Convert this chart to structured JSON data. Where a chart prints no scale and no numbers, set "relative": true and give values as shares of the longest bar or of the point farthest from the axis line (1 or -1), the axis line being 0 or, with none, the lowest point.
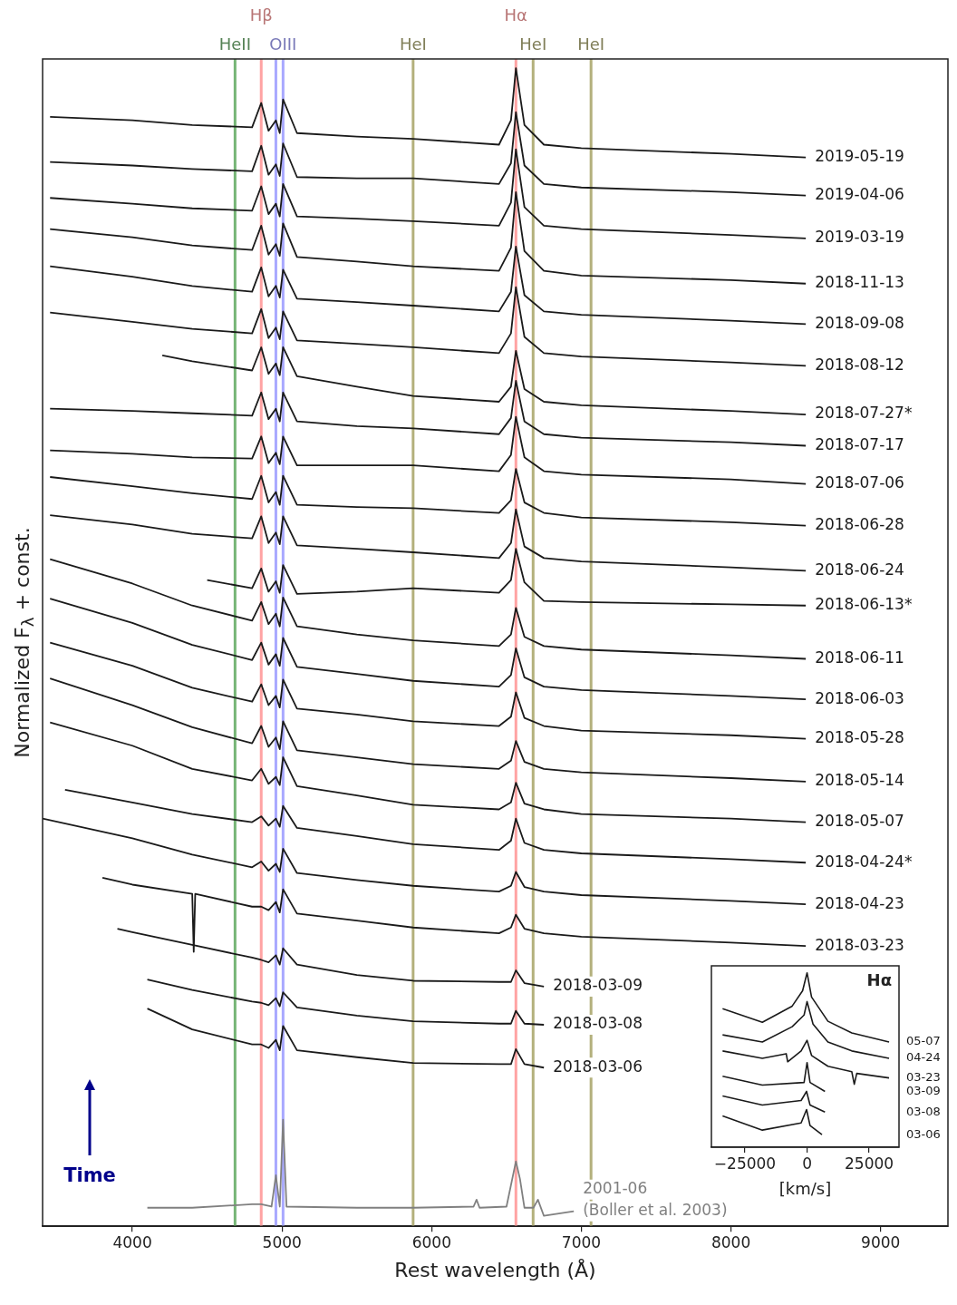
{
  "chart_data": [
    {
      "type": "line",
      "xlabel": "Rest wavelength (Å)",
      "ylabel": "Normalized F$_{λ}$ + const.",
      "relative": true,
      "xlim": [
        3400,
        9450
      ],
      "xticks": [
        4000,
        5000,
        6000,
        7000,
        8000,
        9000
      ],
      "x": [
        3450,
        4000,
        4400,
        4800,
        4861,
        4910,
        4959,
        4985,
        5007,
        5100,
        5500,
        5876,
        6450,
        6530,
        6563,
        6620,
        6750,
        7000,
        8000,
        8500
      ],
      "annotations": [
        "Time",
        {
          "text": "(Boller et al. 2003)",
          "x": 6950,
          "y": 0.013
        }
      ],
      "ref_lines": [
        {
          "axis": "x",
          "value": 4686,
          "label": "HeII",
          "color": "#76b576"
        },
        {
          "axis": "x",
          "value": 4861,
          "label": "Hβ",
          "color": "#ffa3a3"
        },
        {
          "axis": "x",
          "value": 4959,
          "color": "#a8a8ff"
        },
        {
          "axis": "x",
          "value": 5007,
          "label": "OIII",
          "color": "#a8a8ff"
        },
        {
          "axis": "x",
          "value": 5876,
          "label": "HeI",
          "color": "#b3b07c"
        },
        {
          "axis": "x",
          "value": 6678,
          "label": "HeI",
          "color": "#b3b07c"
        },
        {
          "axis": "x",
          "value": 6563,
          "label": "Hα",
          "color": "#ffa3a3"
        },
        {
          "axis": "x",
          "value": 7065,
          "label": "HeI",
          "color": "#b3b07c"
        }
      ],
      "series": [
        {
          "name": "2019-05-19",
          "color": "#1a1a1a",
          "values": [
            0.958,
            0.955,
            0.951,
            0.949,
            0.97,
            0.946,
            0.955,
            0.944,
            0.973,
            0.944,
            0.941,
            0.939,
            0.934,
            0.955,
            1,
            0.951,
            0.934,
            0.931,
            0.926,
            0.923
          ]
        },
        {
          "name": "2019-04-06",
          "color": "#1a1a1a",
          "values": [
            0.919,
            0.916,
            0.913,
            0.911,
            0.933,
            0.908,
            0.917,
            0.907,
            0.935,
            0.906,
            0.905,
            0.905,
            0.9,
            0.918,
            0.962,
            0.916,
            0.9,
            0.897,
            0.893,
            0.89
          ]
        },
        {
          "name": "2019-03-19",
          "color": "#1a1a1a",
          "values": [
            0.888,
            0.883,
            0.879,
            0.877,
            0.898,
            0.874,
            0.883,
            0.872,
            0.9,
            0.872,
            0.87,
            0.868,
            0.864,
            0.884,
            0.93,
            0.88,
            0.864,
            0.861,
            0.856,
            0.853
          ]
        },
        {
          "name": "2018-11-13",
          "color": "#1a1a1a",
          "values": [
            0.861,
            0.854,
            0.847,
            0.843,
            0.864,
            0.839,
            0.848,
            0.838,
            0.866,
            0.837,
            0.833,
            0.829,
            0.825,
            0.845,
            0.893,
            0.842,
            0.825,
            0.821,
            0.817,
            0.814
          ]
        },
        {
          "name": "2018-09-08",
          "color": "#1a1a1a",
          "values": [
            0.829,
            0.82,
            0.812,
            0.807,
            0.828,
            0.803,
            0.812,
            0.802,
            0.826,
            0.801,
            0.798,
            0.795,
            0.79,
            0.807,
            0.846,
            0.804,
            0.79,
            0.787,
            0.782,
            0.779
          ]
        },
        {
          "name": "2018-08-12",
          "color": "#1a1a1a",
          "values": [
            0.789,
            0.781,
            0.775,
            0.771,
            0.792,
            0.767,
            0.776,
            0.766,
            0.79,
            0.765,
            0.762,
            0.759,
            0.754,
            0.771,
            0.811,
            0.768,
            0.754,
            0.751,
            0.746,
            0.743
          ]
        },
        {
          "name": "2018-07-27*",
          "color": "#1a1a1a",
          "x": [
            4200,
            4400,
            4800,
            4861,
            4910,
            4959,
            4985,
            5007,
            5100,
            5500,
            5876,
            6450,
            6530,
            6563,
            6620,
            6750,
            7000,
            8000,
            8500
          ],
          "values": [
            0.752,
            0.747,
            0.739,
            0.759,
            0.736,
            0.745,
            0.735,
            0.759,
            0.734,
            0.725,
            0.717,
            0.712,
            0.725,
            0.756,
            0.723,
            0.712,
            0.709,
            0.704,
            0.701
          ]
        },
        {
          "name": "2018-07-17",
          "color": "#1a1a1a",
          "values": [
            0.706,
            0.704,
            0.702,
            0.7,
            0.72,
            0.697,
            0.706,
            0.695,
            0.72,
            0.695,
            0.691,
            0.689,
            0.684,
            0.698,
            0.73,
            0.695,
            0.684,
            0.681,
            0.677,
            0.674
          ]
        },
        {
          "name": "2018-07-06",
          "color": "#1a1a1a",
          "values": [
            0.67,
            0.667,
            0.664,
            0.663,
            0.682,
            0.659,
            0.668,
            0.658,
            0.682,
            0.657,
            0.657,
            0.657,
            0.652,
            0.666,
            0.699,
            0.664,
            0.652,
            0.649,
            0.645,
            0.641
          ]
        },
        {
          "name": "2018-06-28",
          "color": "#1a1a1a",
          "values": [
            0.647,
            0.639,
            0.633,
            0.628,
            0.648,
            0.625,
            0.634,
            0.623,
            0.648,
            0.623,
            0.621,
            0.62,
            0.616,
            0.627,
            0.654,
            0.625,
            0.616,
            0.612,
            0.608,
            0.605
          ]
        },
        {
          "name": "2018-06-24",
          "color": "#1a1a1a",
          "values": [
            0.614,
            0.606,
            0.598,
            0.594,
            0.613,
            0.59,
            0.599,
            0.589,
            0.613,
            0.588,
            0.585,
            0.582,
            0.577,
            0.59,
            0.619,
            0.587,
            0.577,
            0.574,
            0.569,
            0.566
          ]
        },
        {
          "name": "2018-06-13*",
          "color": "#1a1a1a",
          "x": [
            4500,
            4800,
            4861,
            4910,
            4959,
            4985,
            5007,
            5100,
            5500,
            5876,
            6450,
            6530,
            6563,
            6620,
            6750,
            7000,
            8000,
            8500
          ],
          "values": [
            0.558,
            0.551,
            0.568,
            0.548,
            0.557,
            0.547,
            0.571,
            0.546,
            0.548,
            0.551,
            0.547,
            0.558,
            0.585,
            0.556,
            0.54,
            0.539,
            0.537,
            0.536
          ]
        },
        {
          "name": "2018-06-11",
          "color": "#1a1a1a",
          "values": [
            0.576,
            0.555,
            0.536,
            0.523,
            0.539,
            0.52,
            0.529,
            0.518,
            0.543,
            0.518,
            0.511,
            0.506,
            0.501,
            0.511,
            0.534,
            0.509,
            0.501,
            0.498,
            0.493,
            0.49
          ]
        },
        {
          "name": "2018-06-03",
          "color": "#1a1a1a",
          "values": [
            0.542,
            0.521,
            0.502,
            0.489,
            0.504,
            0.485,
            0.494,
            0.484,
            0.508,
            0.483,
            0.477,
            0.471,
            0.466,
            0.476,
            0.499,
            0.474,
            0.466,
            0.463,
            0.458,
            0.455
          ]
        },
        {
          "name": "2018-05-28",
          "color": "#1a1a1a",
          "values": [
            0.504,
            0.484,
            0.465,
            0.453,
            0.468,
            0.45,
            0.458,
            0.448,
            0.472,
            0.447,
            0.442,
            0.436,
            0.432,
            0.44,
            0.461,
            0.439,
            0.432,
            0.428,
            0.424,
            0.421
          ]
        },
        {
          "name": "2018-05-14",
          "color": "#1a1a1a",
          "values": [
            0.473,
            0.45,
            0.431,
            0.417,
            0.432,
            0.414,
            0.422,
            0.412,
            0.436,
            0.411,
            0.405,
            0.399,
            0.395,
            0.402,
            0.419,
            0.401,
            0.395,
            0.392,
            0.387,
            0.384
          ]
        },
        {
          "name": "2018-05-07",
          "color": "#1a1a1a",
          "values": [
            0.435,
            0.415,
            0.395,
            0.385,
            0.395,
            0.382,
            0.388,
            0.381,
            0.405,
            0.38,
            0.372,
            0.364,
            0.36,
            0.366,
            0.383,
            0.365,
            0.36,
            0.356,
            0.352,
            0.349
          ]
        },
        {
          "name": "2018-04-24*",
          "color": "#1a1a1a",
          "x": [
            3550,
            4000,
            4400,
            4800,
            4861,
            4910,
            4959,
            4985,
            5007,
            5100,
            5500,
            5876,
            6450,
            6530,
            6563,
            6620,
            6750,
            7000,
            8000,
            8500
          ],
          "values": [
            0.377,
            0.366,
            0.356,
            0.349,
            0.354,
            0.346,
            0.352,
            0.345,
            0.363,
            0.344,
            0.337,
            0.33,
            0.325,
            0.333,
            0.352,
            0.331,
            0.325,
            0.322,
            0.317,
            0.314
          ]
        },
        {
          "name": "2018-04-23",
          "color": "#1a1a1a",
          "x": [
            3400,
            4000,
            4400,
            4800,
            4861,
            4910,
            4959,
            4985,
            5007,
            5100,
            5500,
            5876,
            6450,
            6530,
            6563,
            6620,
            6750,
            7000,
            8000,
            8500
          ],
          "values": [
            0.352,
            0.335,
            0.321,
            0.31,
            0.315,
            0.307,
            0.313,
            0.306,
            0.326,
            0.305,
            0.299,
            0.294,
            0.289,
            0.294,
            0.306,
            0.293,
            0.289,
            0.286,
            0.281,
            0.278
          ]
        },
        {
          "name": "2018-03-23",
          "color": "#1a1a1a",
          "x": [
            3800,
            4000,
            4400,
            4410,
            4420,
            4800,
            4861,
            4910,
            4959,
            4985,
            5007,
            5100,
            5500,
            5876,
            6450,
            6530,
            6563,
            6620,
            6750,
            7000,
            8000,
            8500
          ],
          "values": [
            0.301,
            0.295,
            0.287,
            0.237,
            0.287,
            0.276,
            0.276,
            0.273,
            0.28,
            0.271,
            0.291,
            0.27,
            0.264,
            0.258,
            0.253,
            0.258,
            0.269,
            0.257,
            0.253,
            0.25,
            0.245,
            0.242
          ]
        },
        {
          "name": "2018-03-09",
          "color": "#1a1a1a",
          "x": [
            3900,
            4000,
            4400,
            4800,
            4861,
            4910,
            4959,
            4985,
            5007,
            5100,
            5500,
            5876,
            6450,
            6530,
            6563,
            6620,
            6750
          ],
          "values": [
            0.257,
            0.254,
            0.243,
            0.232,
            0.23,
            0.228,
            0.234,
            0.226,
            0.24,
            0.226,
            0.217,
            0.212,
            0.211,
            0.211,
            0.221,
            0.21,
            0.207
          ]
        },
        {
          "name": "2018-03-08",
          "color": "#1a1a1a",
          "x": [
            4100,
            4400,
            4800,
            4861,
            4910,
            4959,
            4985,
            5007,
            5100,
            5500,
            5876,
            6450,
            6530,
            6563,
            6620,
            6750
          ],
          "values": [
            0.213,
            0.204,
            0.194,
            0.193,
            0.191,
            0.197,
            0.19,
            0.202,
            0.189,
            0.182,
            0.177,
            0.175,
            0.175,
            0.186,
            0.175,
            0.174
          ]
        },
        {
          "name": "2018-03-06",
          "color": "#1a1a1a",
          "x": [
            4100,
            4400,
            4800,
            4861,
            4910,
            4959,
            4985,
            5007,
            5100,
            5500,
            5876,
            6450,
            6530,
            6563,
            6620,
            6750
          ],
          "values": [
            0.188,
            0.17,
            0.157,
            0.157,
            0.154,
            0.161,
            0.152,
            0.173,
            0.152,
            0.146,
            0.141,
            0.14,
            0.14,
            0.153,
            0.14,
            0.137
          ]
        },
        {
          "name": "2001-06",
          "color": "#808080",
          "x": [
            4100,
            4400,
            4800,
            4861,
            4930,
            4959,
            4985,
            5007,
            5030,
            5500,
            5876,
            6280,
            6300,
            6320,
            6500,
            6563,
            6590,
            6620,
            6680,
            6710,
            6750,
            6950
          ],
          "values": [
            0.016,
            0.016,
            0.019,
            0.019,
            0.017,
            0.044,
            0.017,
            0.092,
            0.017,
            0.016,
            0.016,
            0.017,
            0.023,
            0.016,
            0.017,
            0.056,
            0.041,
            0.016,
            0.016,
            0.023,
            0.009,
            0.013
          ]
        }
      ]
    },
    {
      "type": "line",
      "title": "Hα",
      "xlabel": "[km/s]",
      "relative": true,
      "xlim": [
        -38500,
        37000
      ],
      "xticks": [
        -25000,
        0,
        25000
      ],
      "series": [
        {
          "name": "05-07",
          "color": "#1a1a1a",
          "x": [
            -34000,
            -18000,
            -6000,
            -1800,
            0,
            1800,
            8400,
            18000,
            33000
          ],
          "values": [
            0.794,
            0.716,
            0.809,
            0.897,
            1,
            0.861,
            0.722,
            0.655,
            0.603
          ]
        },
        {
          "name": "04-24",
          "color": "#1a1a1a",
          "x": [
            -34000,
            -18000,
            -6000,
            -1200,
            0,
            2400,
            8400,
            18000,
            33000
          ],
          "values": [
            0.644,
            0.603,
            0.691,
            0.758,
            0.835,
            0.706,
            0.603,
            0.552,
            0.51
          ]
        },
        {
          "name": "03-23",
          "color": "#1a1a1a",
          "x": [
            -34000,
            -18000,
            -8400,
            -7800,
            -2400,
            0,
            1800,
            8400,
            18000,
            19000,
            20000,
            33000
          ],
          "values": [
            0.552,
            0.51,
            0.536,
            0.49,
            0.552,
            0.613,
            0.526,
            0.464,
            0.433,
            0.361,
            0.423,
            0.397
          ]
        },
        {
          "name": "03-09",
          "color": "#1a1a1a",
          "x": [
            -34000,
            -18000,
            -1200,
            0,
            1200,
            7200
          ],
          "values": [
            0.407,
            0.356,
            0.371,
            0.485,
            0.371,
            0.32
          ]
        },
        {
          "name": "03-08",
          "color": "#1a1a1a",
          "x": [
            -34000,
            -18000,
            -2400,
            -200,
            1200,
            7200
          ],
          "values": [
            0.294,
            0.242,
            0.268,
            0.32,
            0.242,
            0.201
          ]
        },
        {
          "name": "03-06",
          "color": "#1a1a1a",
          "x": [
            -34000,
            -18000,
            -2400,
            -200,
            1200,
            6000
          ],
          "values": [
            0.18,
            0.098,
            0.139,
            0.216,
            0.124,
            0.072
          ]
        }
      ]
    }
  ]
}
